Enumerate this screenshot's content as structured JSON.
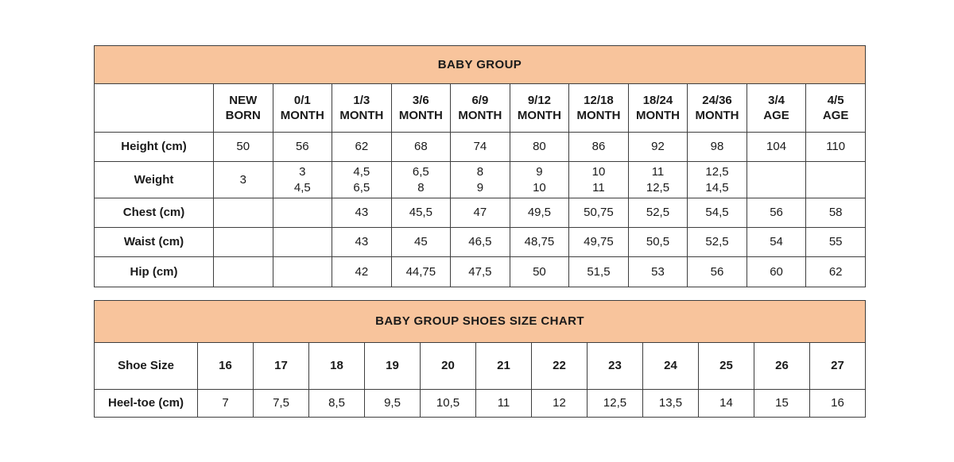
{
  "colors": {
    "title_bar_bg": "#f8c49c",
    "border": "#3e3e3e",
    "text": "#1a1a1a",
    "page_bg": "#ffffff"
  },
  "size_table": {
    "title": "BABY GROUP",
    "corner_label": "",
    "column_headers": [
      "NEW\nBORN",
      "0/1\nMONTH",
      "1/3\nMONTH",
      "3/6\nMONTH",
      "6/9\nMONTH",
      "9/12\nMONTH",
      "12/18\nMONTH",
      "18/24\nMONTH",
      "24/36\nMONTH",
      "3/4\nAGE",
      "4/5\nAGE"
    ],
    "rows": [
      {
        "label": "Height (cm)",
        "values": [
          "50",
          "56",
          "62",
          "68",
          "74",
          "80",
          "86",
          "92",
          "98",
          "104",
          "110"
        ]
      },
      {
        "label": "Weight",
        "values": [
          "3",
          "3\n4,5",
          "4,5\n6,5",
          "6,5\n8",
          "8\n9",
          "9\n10",
          "10\n11",
          "11\n12,5",
          "12,5\n14,5",
          "",
          ""
        ]
      },
      {
        "label": "Chest (cm)",
        "values": [
          "",
          "",
          "43",
          "45,5",
          "47",
          "49,5",
          "50,75",
          "52,5",
          "54,5",
          "56",
          "58"
        ]
      },
      {
        "label": "Waist (cm)",
        "values": [
          "",
          "",
          "43",
          "45",
          "46,5",
          "48,75",
          "49,75",
          "50,5",
          "52,5",
          "54",
          "55"
        ]
      },
      {
        "label": "Hip (cm)",
        "values": [
          "",
          "",
          "42",
          "44,75",
          "47,5",
          "50",
          "51,5",
          "53",
          "56",
          "60",
          "62"
        ]
      }
    ]
  },
  "shoes_table": {
    "title": "BABY GROUP SHOES SIZE CHART",
    "rows": [
      {
        "label": "Shoe Size",
        "bold": true,
        "values": [
          "16",
          "17",
          "18",
          "19",
          "20",
          "21",
          "22",
          "23",
          "24",
          "25",
          "26",
          "27"
        ]
      },
      {
        "label": "Heel-toe (cm)",
        "bold": false,
        "values": [
          "7",
          "7,5",
          "8,5",
          "9,5",
          "10,5",
          "11",
          "12",
          "12,5",
          "13,5",
          "14",
          "15",
          "16"
        ]
      }
    ]
  }
}
